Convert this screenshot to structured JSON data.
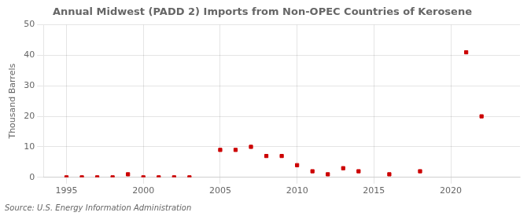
{
  "chart_data": {
    "type": "scatter",
    "title": "Annual Midwest (PADD 2) Imports from Non-OPEC Countries of Kerosene",
    "ylabel": "Thousand Barrels",
    "annotation": "Source: U.S. Energy Information Administration",
    "x": [
      1995,
      1996,
      1997,
      1998,
      1999,
      2000,
      2001,
      2002,
      2003,
      2005,
      2006,
      2007,
      2008,
      2009,
      2010,
      2011,
      2012,
      2013,
      2014,
      2016,
      2018,
      2021,
      2022
    ],
    "values": [
      0,
      0,
      0,
      0,
      1,
      0,
      0,
      0,
      0,
      9,
      9,
      10,
      7,
      7,
      4,
      2,
      1,
      3,
      2,
      1,
      2,
      41,
      20
    ],
    "color": "#cc0000",
    "marker": "square",
    "xlim": [
      1993.5,
      2024.5
    ],
    "xticks": [
      1995,
      2000,
      2005,
      2010,
      2015,
      2020
    ],
    "ylim": [
      0,
      50
    ],
    "yticks": [
      0,
      10,
      20,
      30,
      40,
      50
    ],
    "grid": true
  }
}
